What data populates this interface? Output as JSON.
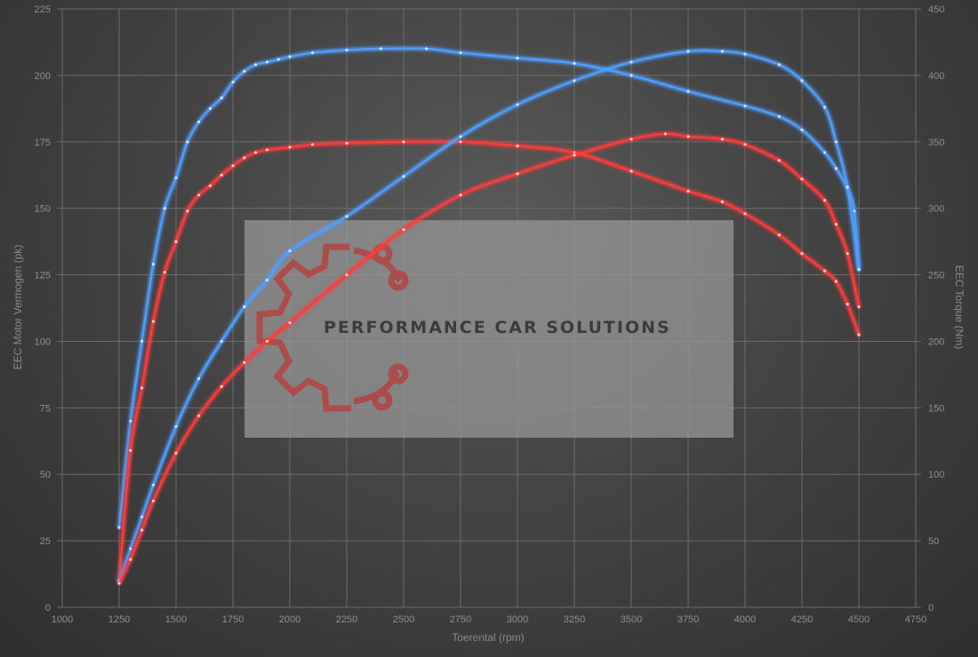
{
  "chart_data": {
    "type": "line",
    "xlabel": "Toerental (rpm)",
    "ylabel": "EEC Motor Vermogen (pk)",
    "y2label": "EEC Torque (Nm)",
    "xlim": [
      1000,
      4750
    ],
    "ylim": [
      0,
      225
    ],
    "y2lim": [
      0,
      450
    ],
    "x_ticks": [
      1000,
      1250,
      1500,
      1750,
      2000,
      2250,
      2500,
      2750,
      3000,
      3250,
      3500,
      3750,
      4000,
      4250,
      4500,
      4750
    ],
    "y_ticks": [
      0,
      25,
      50,
      75,
      100,
      125,
      150,
      175,
      200,
      225
    ],
    "y2_ticks": [
      0,
      50,
      100,
      150,
      200,
      250,
      300,
      350,
      400,
      450
    ],
    "grid": true,
    "series": [
      {
        "color": "#4f9fff",
        "axis": "y2",
        "x": [
          1250,
          1300,
          1350,
          1400,
          1450,
          1500,
          1550,
          1600,
          1650,
          1700,
          1750,
          1800,
          1850,
          1900,
          1950,
          2000,
          2100,
          2250,
          2400,
          2600,
          2750,
          3000,
          3250,
          3500,
          3750,
          4000,
          4150,
          4250,
          4350,
          4400,
          4450,
          4480,
          4500
        ],
        "y": [
          60,
          140,
          200,
          258,
          300,
          323,
          350,
          365,
          375,
          383,
          395,
          403,
          408,
          410,
          412,
          414,
          417,
          419,
          420,
          420,
          417,
          413,
          409,
          400,
          388,
          377,
          369,
          359,
          342,
          330,
          315,
          298,
          255
        ]
      },
      {
        "color": "#ff3b3b",
        "axis": "y2",
        "x": [
          1250,
          1300,
          1350,
          1400,
          1450,
          1500,
          1550,
          1600,
          1650,
          1700,
          1750,
          1800,
          1850,
          1900,
          2000,
          2100,
          2250,
          2500,
          2750,
          3000,
          3250,
          3500,
          3750,
          3900,
          4000,
          4150,
          4250,
          4350,
          4400,
          4450,
          4500
        ],
        "y": [
          20,
          118,
          165,
          215,
          252,
          275,
          298,
          310,
          317,
          325,
          332,
          338,
          342,
          344,
          346,
          348,
          349,
          350,
          350,
          347,
          342,
          328,
          313,
          305,
          296,
          280,
          266,
          253,
          245,
          228,
          205
        ]
      },
      {
        "color": "#4f9fff",
        "axis": "y",
        "x": [
          1250,
          1300,
          1350,
          1400,
          1500,
          1600,
          1700,
          1800,
          1900,
          2000,
          2250,
          2500,
          2750,
          3000,
          3250,
          3500,
          3750,
          3900,
          4000,
          4150,
          4250,
          4350,
          4400,
          4450,
          4500
        ],
        "y": [
          10,
          22,
          34,
          46,
          68,
          86,
          100,
          113,
          123,
          134,
          147,
          162,
          177,
          189,
          198,
          205,
          209,
          209,
          208,
          204,
          198,
          188,
          175,
          158,
          127
        ]
      },
      {
        "color": "#ff3b3b",
        "axis": "y",
        "x": [
          1250,
          1300,
          1350,
          1400,
          1500,
          1600,
          1700,
          1800,
          1900,
          2000,
          2250,
          2500,
          2750,
          3000,
          3250,
          3500,
          3650,
          3750,
          3900,
          4000,
          4150,
          4250,
          4350,
          4400,
          4450,
          4500
        ],
        "y": [
          9,
          18,
          29,
          40,
          58,
          72,
          83,
          92,
          100,
          107,
          125,
          142,
          155,
          163,
          170,
          176,
          178,
          177,
          176,
          174,
          168,
          161,
          153,
          144,
          133,
          113
        ]
      }
    ]
  },
  "watermark": {
    "text": "PERFORMANCE CAR SOLUTIONS",
    "gear_color": "#b93a3a",
    "box_color": "#9a9a9a"
  }
}
